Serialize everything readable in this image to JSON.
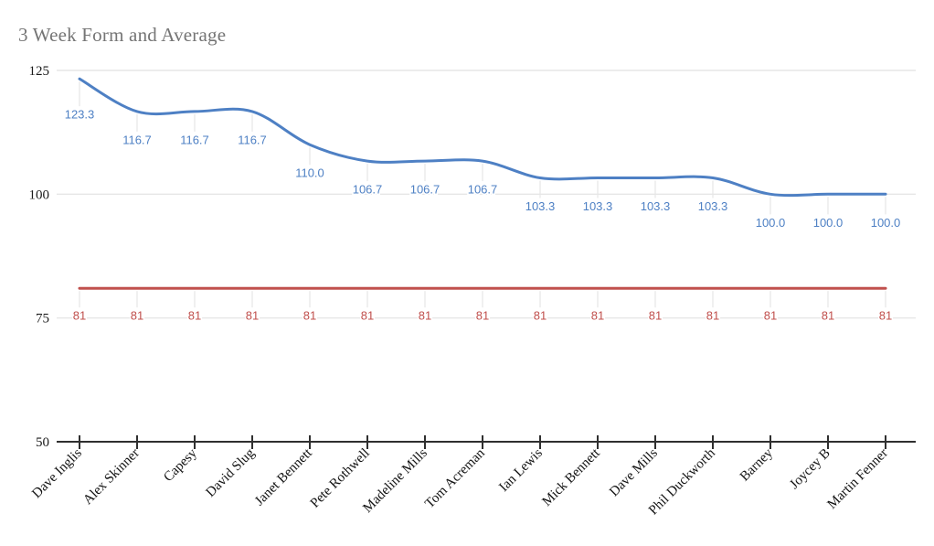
{
  "chart_data": {
    "type": "line",
    "smooth": true,
    "title": "3 Week Form and Average",
    "categories": [
      "Dave Inglis",
      "Alex Skinner",
      "Capesy",
      "David Slug",
      "Janet Bennett",
      "Pete Rothwell",
      "Madeline Mills",
      "Tom Acreman",
      "Ian Lewis",
      "Mick Bennett",
      "Dave Mills",
      "Phil Duckworth",
      "Barney",
      "Joycey B",
      "Martin Fenner"
    ],
    "series": [
      {
        "name": "form",
        "color": "#4e80c4",
        "values": [
          123.3,
          116.7,
          116.7,
          116.7,
          110.0,
          106.7,
          106.7,
          106.7,
          103.3,
          103.3,
          103.3,
          103.3,
          100.0,
          100.0,
          100.0
        ],
        "labels": [
          "123.3",
          "116.7",
          "116.7",
          "116.7",
          "110.0",
          "106.7",
          "106.7",
          "106.7",
          "103.3",
          "103.3",
          "103.3",
          "103.3",
          "100.0",
          "100.0",
          "100.0"
        ]
      },
      {
        "name": "average",
        "color": "#c0504d",
        "values": [
          81,
          81,
          81,
          81,
          81,
          81,
          81,
          81,
          81,
          81,
          81,
          81,
          81,
          81,
          81
        ],
        "labels": [
          "81",
          "81",
          "81",
          "81",
          "81",
          "81",
          "81",
          "81",
          "81",
          "81",
          "81",
          "81",
          "81",
          "81",
          "81"
        ]
      }
    ],
    "yticks": [
      50,
      75,
      100,
      125
    ],
    "ytick_labels": [
      "50",
      "75",
      "100",
      "125"
    ],
    "ylim": [
      50,
      125
    ],
    "grid": true,
    "legend": "none",
    "data_labels": true,
    "colors": {
      "title": "#757575",
      "gridline": "#e6e6e6",
      "leader": "#e6e6e6",
      "axis": "#2f2f2f",
      "background": "#ffffff"
    }
  }
}
